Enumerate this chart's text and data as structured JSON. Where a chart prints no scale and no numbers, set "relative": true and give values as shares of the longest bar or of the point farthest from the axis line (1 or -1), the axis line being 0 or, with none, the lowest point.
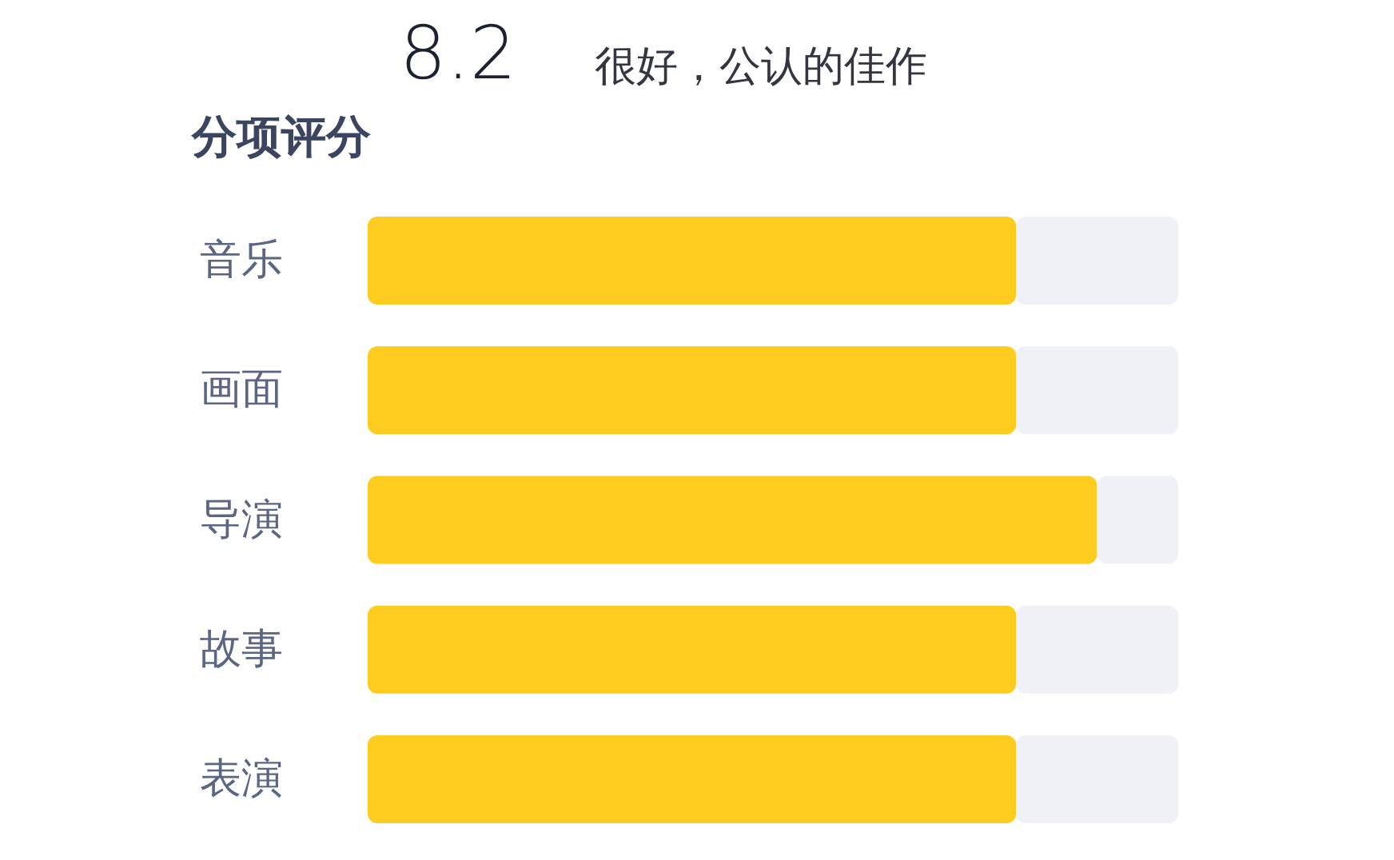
{
  "chart_data": {
    "type": "bar",
    "orientation": "horizontal",
    "stacked": true,
    "relative": true,
    "title": "8.2",
    "subtitle": "很好，公认的佳作",
    "annotations": [
      "分项评分"
    ],
    "categories": [
      "音乐",
      "画面",
      "导演",
      "故事",
      "表演"
    ],
    "series": [
      {
        "color": "#fdcc1f",
        "values": [
          0.8,
          0.8,
          0.9,
          0.8,
          0.8
        ]
      },
      {
        "color": "#eff1f6",
        "values": [
          0.2,
          0.2,
          0.1,
          0.2,
          0.2
        ]
      }
    ]
  }
}
